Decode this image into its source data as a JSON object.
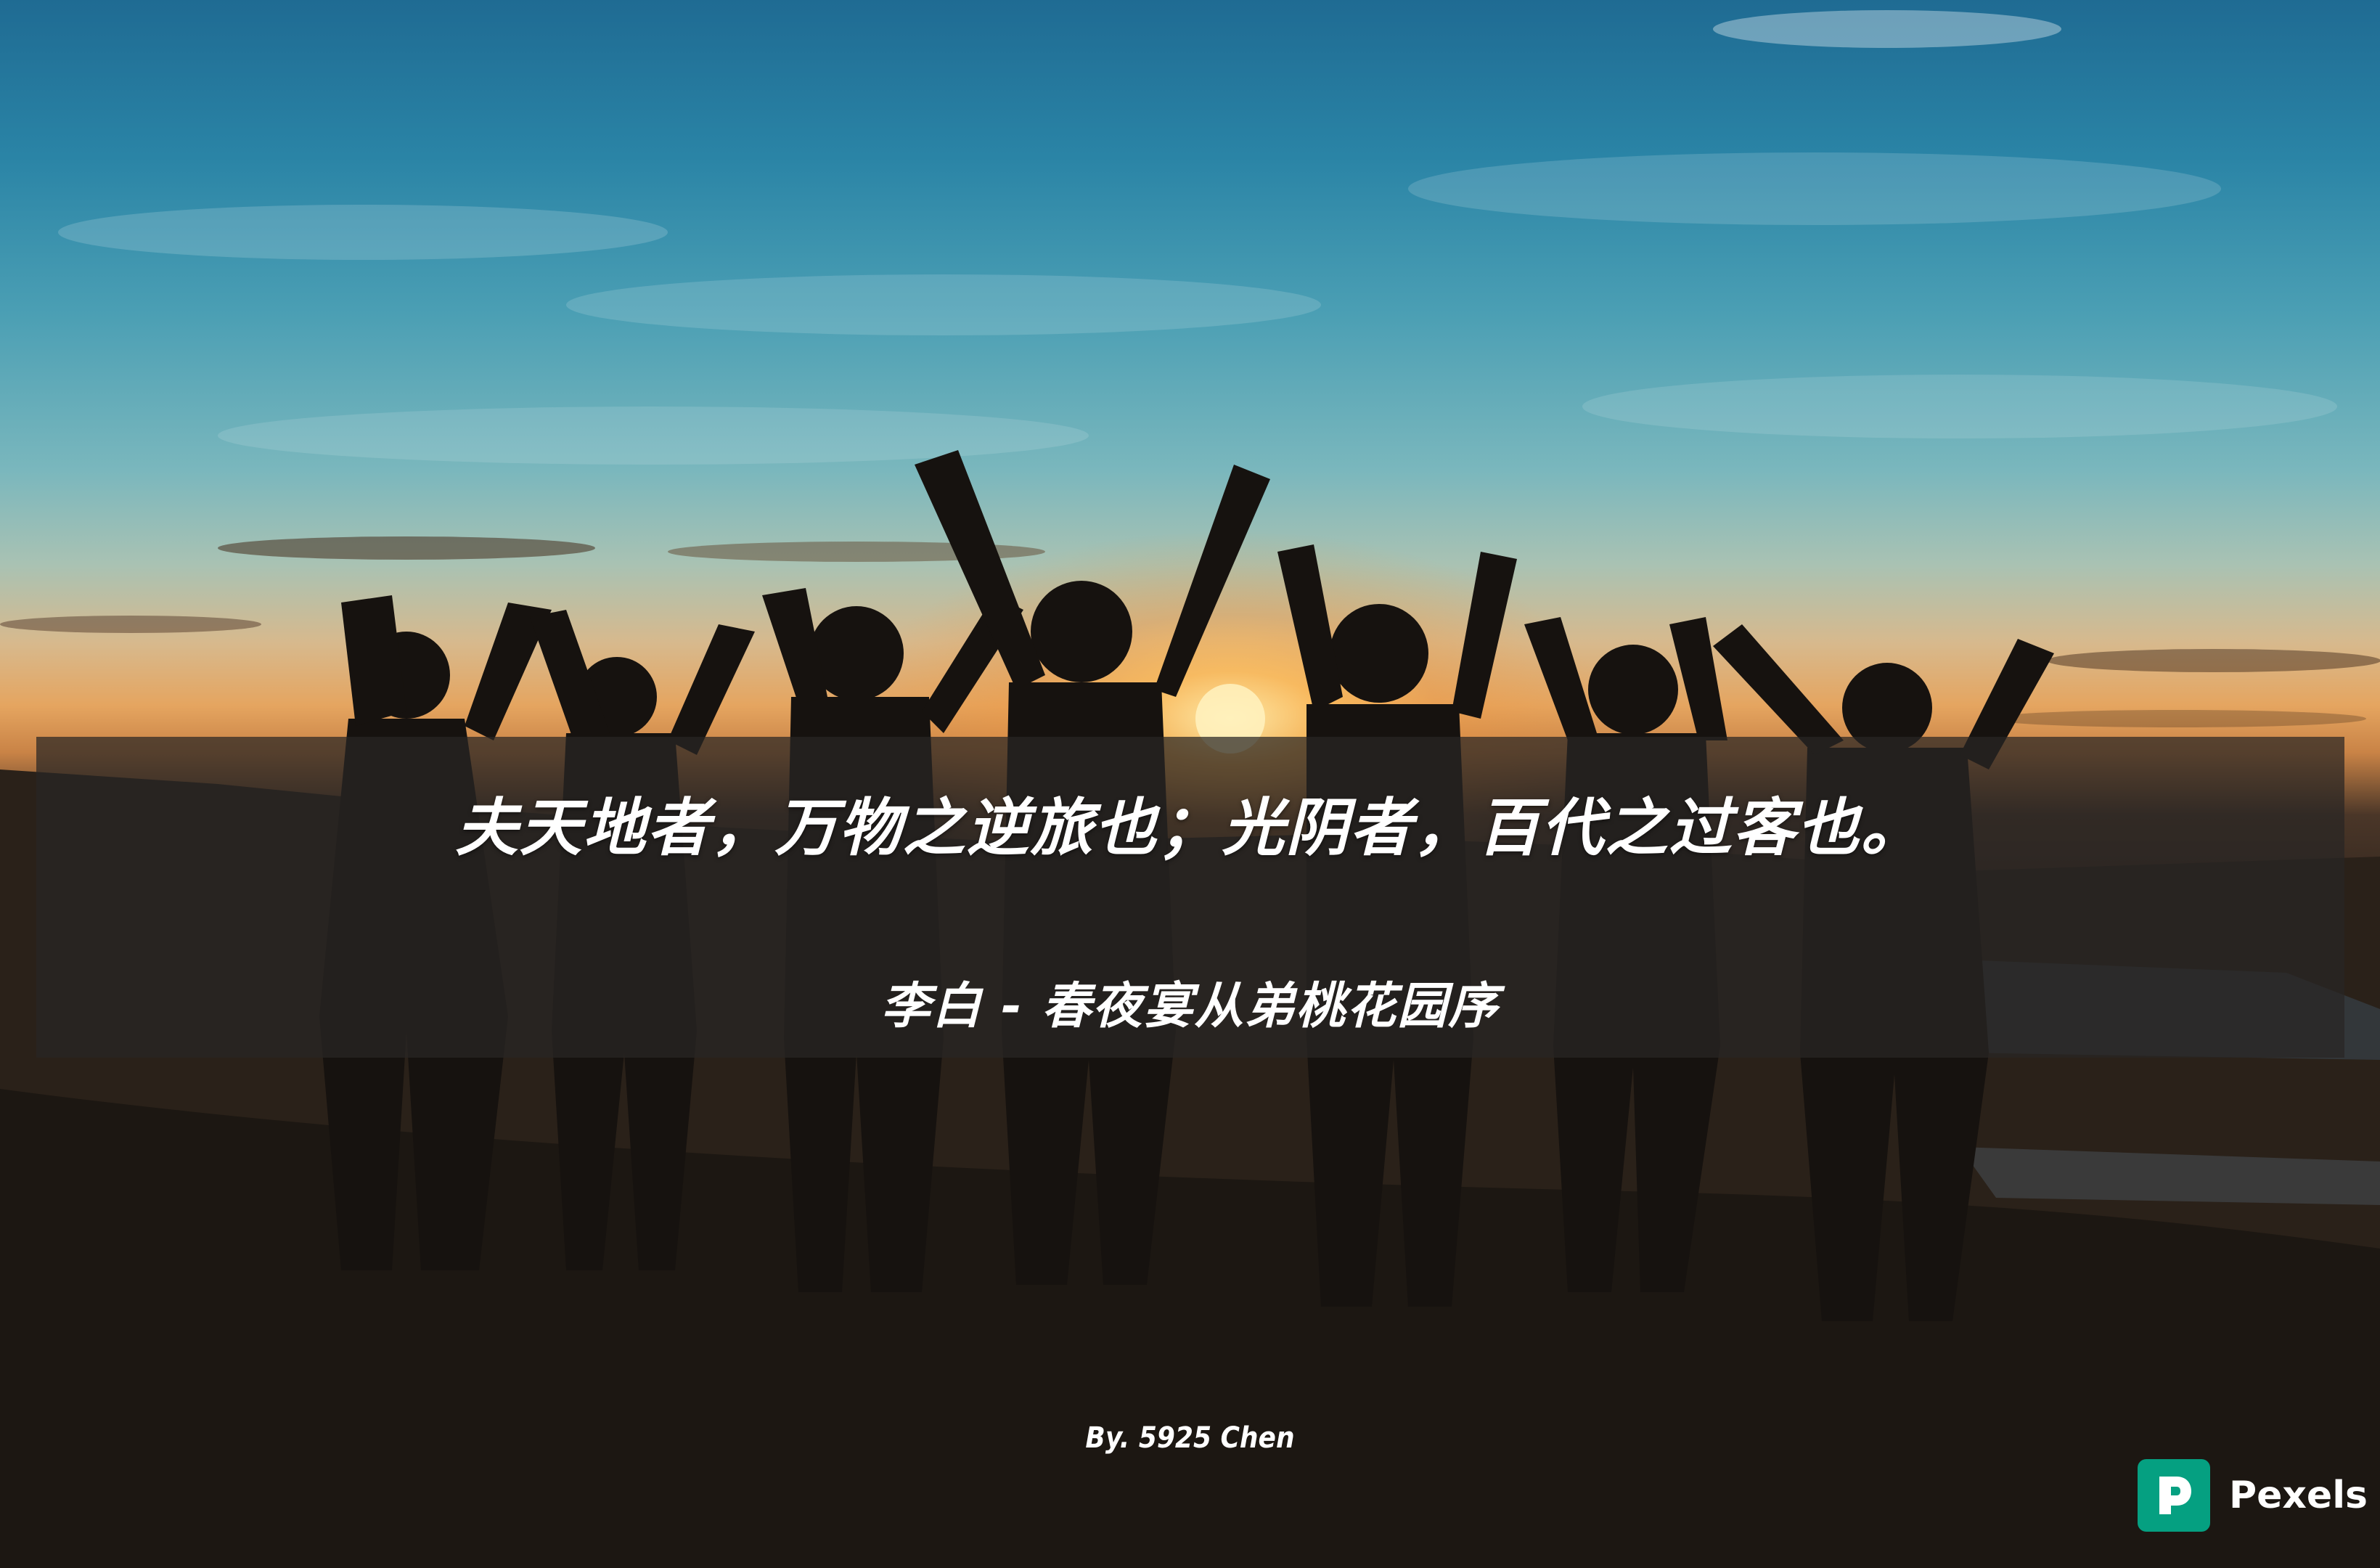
{
  "quote": {
    "text": "夫天地者，万物之逆旅也；光阴者，百代之过客也。",
    "author": "李白 - 春夜宴从弟桃花园序"
  },
  "byline": "By. 5925 Chen",
  "watermark": {
    "label": "Pexels",
    "brand_color": "#05a081",
    "icon": "pexels-logo-icon"
  },
  "colors": {
    "sky_top": "#1f6b93",
    "horizon": "#e5a560",
    "banner": "rgba(40, 38, 36, 0.72)",
    "text": "#ffffff"
  }
}
